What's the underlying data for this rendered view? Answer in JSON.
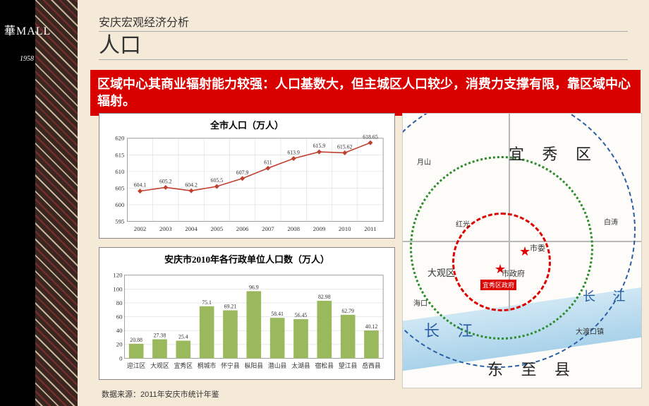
{
  "logo": {
    "text": "華MALL",
    "year": "1958"
  },
  "header": {
    "subtitle": "安庆宏观经济分析",
    "title": "人口"
  },
  "banner": "区域中心其商业辐射能力较强：人口基数大，但主城区人口较少，消费力支撑有限，靠区域中心辐射。",
  "line_chart": {
    "type": "line",
    "title": "全市人口（万人）",
    "categories": [
      "2002",
      "2003",
      "2004",
      "2005",
      "2006",
      "2007",
      "2008",
      "2009",
      "2010",
      "2011"
    ],
    "values": [
      604.1,
      605.2,
      604.2,
      605.5,
      607.9,
      611,
      613.9,
      615.9,
      615.62,
      618.65
    ],
    "point_labels": [
      "604.1",
      "605.2",
      "604.2",
      "605.5",
      "607.9",
      "611",
      "613.9",
      "615.9",
      "615.62",
      "618.65"
    ],
    "ylim": [
      595,
      620
    ],
    "ytick_step": 5,
    "line_color": "#c04030",
    "marker": "diamond",
    "background_color": "#ffffff",
    "grid_color": "#dcdcdc",
    "axis_fontsize": 9,
    "label_fontsize": 8
  },
  "bar_chart": {
    "type": "bar",
    "title": "安庆市2010年各行政单位人口数（万人）",
    "categories": [
      "迎江区",
      "大观区",
      "宜秀区",
      "桐城市",
      "怀宁县",
      "枞阳县",
      "潜山县",
      "太湖县",
      "宿松县",
      "望江县",
      "岳西县"
    ],
    "values": [
      20.88,
      27.38,
      25.4,
      75.1,
      69.21,
      96.9,
      58.41,
      56.45,
      82.98,
      62.79,
      40.12
    ],
    "value_labels": [
      "20.88",
      "27.38",
      "25.4",
      "75.1",
      "69.21",
      "96.9",
      "58.41",
      "56.45",
      "82.98",
      "62.79",
      "40.12"
    ],
    "ylim": [
      0,
      120
    ],
    "ytick_step": 20,
    "bar_color": "#9ab95c",
    "background_color": "#ffffff",
    "grid_color": "#dcdcdc",
    "axis_fontsize": 9,
    "label_fontsize": 8
  },
  "source": "数据来源：2011年安庆市统计年鉴",
  "map": {
    "yi_xiu": "宜  秀  区",
    "daguan": "大观区",
    "changjiang": "长  江",
    "dongzhi": "东  至  县",
    "shizheng": "市政府",
    "shiwei": "市委",
    "places": [
      "红光",
      "白涛",
      "月山",
      "海口",
      "大渡口镇"
    ],
    "gov_tag": "宜秀区政府"
  }
}
